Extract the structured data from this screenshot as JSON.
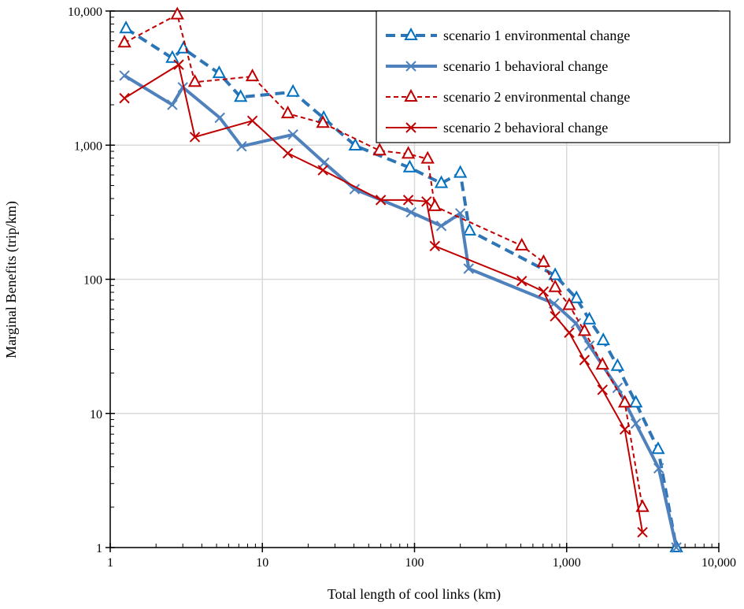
{
  "chart_data": {
    "type": "line",
    "title": "",
    "xlabel": "Total length of cool links (km)",
    "ylabel": "Marginal Benefits (trip/km)",
    "xscale": "log",
    "yscale": "log",
    "xlim": [
      1,
      10000
    ],
    "ylim": [
      1,
      10000
    ],
    "xticks": [
      "1",
      "10",
      "100",
      "1,000",
      "10,000"
    ],
    "yticks": [
      "1",
      "10",
      "100",
      "1,000",
      "10,000"
    ],
    "grid": true,
    "legend_position": "top-right",
    "series": [
      {
        "name": "scenario 1 environmental change",
        "color": "#2e75b6",
        "style": "dashed",
        "marker": "triangle",
        "x": [
          1.27,
          2.56,
          3.03,
          5.2,
          7.2,
          15.9,
          25.3,
          40.8,
          93,
          150,
          200,
          230,
          840,
          1160,
          1410,
          1740,
          2160,
          2850,
          3990,
          5260
        ],
        "y": [
          7400,
          4460,
          5240,
          3430,
          2280,
          2490,
          1590,
          990,
          680,
          520,
          620,
          230,
          107,
          72,
          50,
          35,
          22.5,
          12,
          5.4,
          1
        ]
      },
      {
        "name": "scenario 1 behavioral change",
        "color": "#4f81bd",
        "style": "solid-thick",
        "marker": "x",
        "x": [
          1.24,
          2.56,
          3.0,
          5.25,
          7.3,
          15.9,
          25.5,
          40.4,
          95,
          150,
          200,
          227,
          826,
          1150,
          1410,
          2160,
          2850,
          4030,
          5260
        ],
        "y": [
          3300,
          2000,
          2700,
          1600,
          980,
          1200,
          740,
          470,
          316,
          250,
          310,
          120,
          66,
          47,
          32,
          15.5,
          8.4,
          3.9,
          1
        ]
      },
      {
        "name": "scenario 2 environmental change",
        "color": "#c00000",
        "style": "dashed-thin",
        "marker": "triangle",
        "x": [
          1.24,
          2.76,
          3.6,
          8.6,
          14.7,
          25,
          59,
          91,
          122,
          136,
          507,
          705,
          840,
          1040,
          1310,
          1720,
          2410,
          3150
        ],
        "y": [
          5800,
          9400,
          2950,
          3250,
          1720,
          1460,
          910,
          860,
          790,
          350,
          178,
          134,
          87,
          64,
          41,
          23,
          12,
          2
        ]
      },
      {
        "name": "scenario 2 behavioral change",
        "color": "#c00000",
        "style": "solid",
        "marker": "x",
        "x": [
          1.24,
          2.82,
          3.6,
          8.6,
          14.7,
          25,
          60,
          91,
          120,
          136,
          507,
          705,
          840,
          1040,
          1310,
          1720,
          2410,
          3150
        ],
        "y": [
          2240,
          3980,
          1150,
          1520,
          870,
          650,
          390,
          390,
          380,
          177,
          97,
          81,
          53,
          40,
          25,
          15,
          7.6,
          1.3
        ]
      }
    ]
  }
}
